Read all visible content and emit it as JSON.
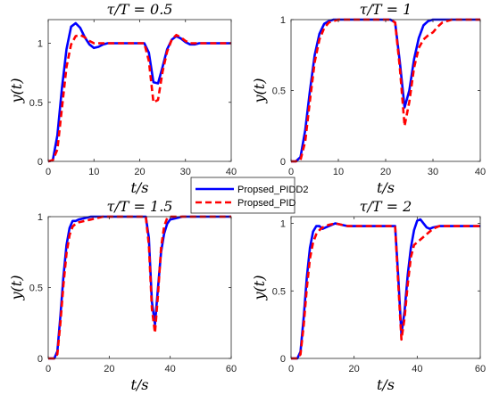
{
  "figure": {
    "legend": [
      {
        "label": "Propsed_PIDD2",
        "color": "#0000ff",
        "dash": "solid"
      },
      {
        "label": "Propsed_PID",
        "color": "#ff0000",
        "dash": "dashed"
      }
    ]
  },
  "chart_data": [
    {
      "type": "line",
      "title": "τ/T = 0.5",
      "xlabel": "t/s",
      "ylabel": "y(t)",
      "xlim": [
        0,
        40
      ],
      "ylim": [
        0,
        1.2
      ],
      "xticks": [
        0,
        10,
        20,
        30,
        40
      ],
      "yticks": [
        0,
        0.5,
        1
      ],
      "grid": false,
      "series": [
        {
          "name": "Propsed_PIDD2",
          "color": "#0000ff",
          "dash": "solid",
          "x": [
            0,
            1,
            2,
            3,
            4,
            5,
            6,
            7,
            8,
            9,
            10,
            11,
            12,
            13,
            14,
            15,
            16,
            17,
            18,
            19,
            20,
            21,
            22,
            23,
            24,
            25,
            26,
            27,
            28,
            29,
            30,
            31,
            32,
            33,
            34,
            35,
            36,
            37,
            38,
            39,
            40
          ],
          "y": [
            0,
            0.01,
            0.22,
            0.62,
            0.95,
            1.14,
            1.17,
            1.13,
            1.05,
            0.99,
            0.96,
            0.97,
            0.99,
            1.0,
            1.0,
            1.0,
            1.0,
            1.0,
            1.0,
            1.0,
            1.0,
            1.0,
            0.92,
            0.67,
            0.66,
            0.8,
            0.95,
            1.03,
            1.06,
            1.04,
            1.01,
            0.99,
            0.99,
            1.0,
            1.0,
            1.0,
            1.0,
            1.0,
            1.0,
            1.0,
            1.0
          ]
        },
        {
          "name": "Propsed_PID",
          "color": "#ff0000",
          "dash": "dashed",
          "x": [
            0,
            1,
            2,
            3,
            4,
            5,
            6,
            7,
            8,
            9,
            10,
            11,
            12,
            13,
            14,
            15,
            16,
            17,
            18,
            19,
            20,
            21,
            22,
            23,
            24,
            25,
            26,
            27,
            28,
            29,
            30,
            31,
            32,
            33,
            34,
            35,
            36,
            37,
            38,
            39,
            40
          ],
          "y": [
            0,
            0.01,
            0.1,
            0.45,
            0.8,
            0.99,
            1.06,
            1.07,
            1.05,
            1.02,
            1.0,
            1.0,
            1.0,
            1.0,
            1.0,
            1.0,
            1.0,
            1.0,
            1.0,
            1.0,
            1.0,
            1.0,
            0.85,
            0.5,
            0.52,
            0.76,
            0.93,
            1.03,
            1.07,
            1.05,
            1.02,
            1.0,
            1.0,
            1.0,
            1.0,
            1.0,
            1.0,
            1.0,
            1.0,
            1.0,
            1.0
          ]
        }
      ]
    },
    {
      "type": "line",
      "title": "τ/T = 1",
      "xlabel": "t/s",
      "ylabel": "y(t)",
      "xlim": [
        0,
        40
      ],
      "ylim": [
        0,
        1
      ],
      "xticks": [
        0,
        10,
        20,
        30,
        40
      ],
      "yticks": [
        0,
        0.5,
        1
      ],
      "grid": false,
      "series": [
        {
          "name": "Propsed_PIDD2",
          "color": "#0000ff",
          "dash": "solid",
          "x": [
            0,
            1,
            2,
            3,
            4,
            5,
            6,
            7,
            8,
            9,
            10,
            11,
            12,
            14,
            16,
            18,
            20,
            21,
            22,
            23,
            24,
            25,
            26,
            27,
            28,
            29,
            30,
            31,
            32,
            34,
            36,
            38,
            40
          ],
          "y": [
            0,
            0,
            0.03,
            0.22,
            0.5,
            0.75,
            0.9,
            0.97,
            0.99,
            1.0,
            1.0,
            1.0,
            1.0,
            1.0,
            1.0,
            1.0,
            1.0,
            1.0,
            0.98,
            0.7,
            0.38,
            0.5,
            0.72,
            0.87,
            0.96,
            0.99,
            1.0,
            1.0,
            1.0,
            1.0,
            1.0,
            1.0,
            1.0
          ]
        },
        {
          "name": "Propsed_PID",
          "color": "#ff0000",
          "dash": "dashed",
          "x": [
            0,
            1,
            2,
            3,
            4,
            5,
            6,
            7,
            8,
            9,
            10,
            11,
            12,
            14,
            16,
            18,
            20,
            21,
            22,
            23,
            24,
            25,
            26,
            27,
            28,
            29,
            30,
            31,
            32,
            34,
            36,
            38,
            40
          ],
          "y": [
            0,
            0,
            0.01,
            0.14,
            0.43,
            0.7,
            0.86,
            0.94,
            0.98,
            0.99,
            1.0,
            1.0,
            1.0,
            1.0,
            1.0,
            1.0,
            1.0,
            1.0,
            0.98,
            0.66,
            0.25,
            0.42,
            0.66,
            0.8,
            0.86,
            0.89,
            0.91,
            0.95,
            0.98,
            1.0,
            1.0,
            1.0,
            1.0
          ]
        }
      ]
    },
    {
      "type": "line",
      "title": "τ/T = 1.5",
      "xlabel": "t/s",
      "ylabel": "y(t)",
      "xlim": [
        0,
        60
      ],
      "ylim": [
        0,
        1
      ],
      "xticks": [
        0,
        20,
        40,
        60
      ],
      "yticks": [
        0,
        0.5,
        1
      ],
      "grid": false,
      "series": [
        {
          "name": "Propsed_PIDD2",
          "color": "#0000ff",
          "dash": "solid",
          "x": [
            0,
            2,
            3,
            4,
            5,
            6,
            7,
            8,
            9,
            10,
            12,
            14,
            16,
            18,
            20,
            25,
            30,
            32,
            33,
            34,
            35,
            36,
            37,
            38,
            39,
            40,
            42,
            44,
            46,
            48,
            50,
            55,
            60
          ],
          "y": [
            0,
            0,
            0.05,
            0.3,
            0.58,
            0.8,
            0.92,
            0.97,
            0.97,
            0.98,
            0.99,
            1.0,
            1.0,
            1.0,
            1.0,
            1.0,
            1.0,
            1.0,
            0.85,
            0.4,
            0.24,
            0.5,
            0.75,
            0.88,
            0.95,
            0.98,
            0.99,
            1.0,
            1.0,
            1.0,
            1.0,
            1.0,
            1.0
          ]
        },
        {
          "name": "Propsed_PID",
          "color": "#ff0000",
          "dash": "dashed",
          "x": [
            0,
            2,
            3,
            4,
            5,
            6,
            7,
            8,
            9,
            10,
            12,
            14,
            16,
            18,
            20,
            25,
            30,
            32,
            33,
            34,
            35,
            36,
            37,
            38,
            39,
            40,
            42,
            44,
            46,
            48,
            50,
            55,
            60
          ],
          "y": [
            0,
            0,
            0.03,
            0.25,
            0.52,
            0.74,
            0.87,
            0.93,
            0.95,
            0.96,
            0.97,
            0.98,
            0.99,
            1.0,
            1.0,
            1.0,
            1.0,
            1.0,
            0.8,
            0.35,
            0.18,
            0.45,
            0.78,
            0.93,
            0.99,
            1.0,
            1.0,
            1.0,
            1.0,
            1.0,
            1.0,
            1.0,
            1.0
          ]
        }
      ]
    },
    {
      "type": "line",
      "title": "τ/T = 2",
      "xlabel": "t/s",
      "ylabel": "y(t)",
      "xlim": [
        0,
        60
      ],
      "ylim": [
        0,
        1.05
      ],
      "xticks": [
        0,
        20,
        40,
        60
      ],
      "yticks": [
        0,
        0.5,
        1
      ],
      "grid": false,
      "series": [
        {
          "name": "Propsed_PIDD2",
          "color": "#0000ff",
          "dash": "solid",
          "x": [
            0,
            2,
            3,
            4,
            5,
            6,
            7,
            8,
            9,
            10,
            11,
            12,
            14,
            16,
            18,
            20,
            25,
            30,
            33,
            34,
            35,
            36,
            37,
            38,
            39,
            40,
            41,
            42,
            43,
            44,
            45,
            47,
            50,
            55,
            60
          ],
          "y": [
            0,
            0,
            0.05,
            0.3,
            0.6,
            0.82,
            0.94,
            0.98,
            0.98,
            0.96,
            0.97,
            0.98,
            1.0,
            0.99,
            0.98,
            0.98,
            0.98,
            0.98,
            0.98,
            0.6,
            0.18,
            0.35,
            0.62,
            0.82,
            0.95,
            1.02,
            1.03,
            1.0,
            0.97,
            0.96,
            0.97,
            0.98,
            0.98,
            0.98,
            0.98
          ]
        },
        {
          "name": "Propsed_PID",
          "color": "#ff0000",
          "dash": "dashed",
          "x": [
            0,
            2,
            3,
            4,
            5,
            6,
            7,
            8,
            9,
            10,
            11,
            12,
            14,
            16,
            18,
            20,
            25,
            30,
            33,
            34,
            35,
            36,
            37,
            38,
            39,
            40,
            41,
            42,
            43,
            44,
            45,
            47,
            50,
            55,
            60
          ],
          "y": [
            0,
            0,
            0.03,
            0.24,
            0.52,
            0.74,
            0.86,
            0.92,
            0.95,
            0.97,
            0.98,
            0.99,
            1.0,
            0.99,
            0.98,
            0.98,
            0.98,
            0.98,
            0.98,
            0.55,
            0.14,
            0.3,
            0.55,
            0.75,
            0.84,
            0.86,
            0.88,
            0.9,
            0.92,
            0.94,
            0.96,
            0.98,
            0.98,
            0.98,
            0.98
          ]
        }
      ]
    }
  ]
}
